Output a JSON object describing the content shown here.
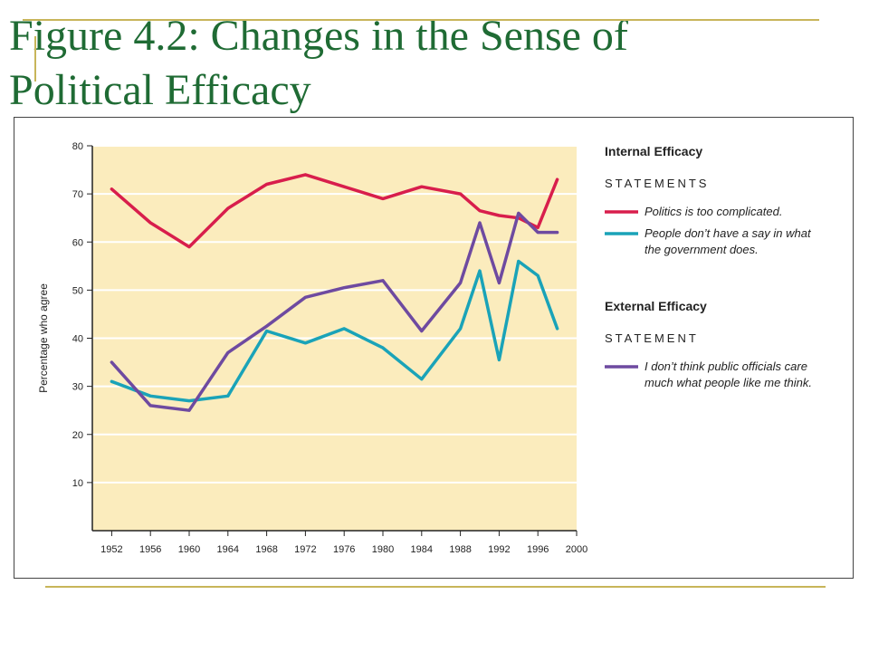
{
  "slide": {
    "title_line1": "Figure 4.2: Changes in the Sense of",
    "title_line2": "Political Efficacy"
  },
  "chart_data": {
    "type": "line",
    "ylabel": "Percentage who agree",
    "xlabel": "",
    "ylim": [
      0,
      80
    ],
    "xlim": [
      1950,
      2000
    ],
    "yticks": [
      10,
      20,
      30,
      40,
      50,
      60,
      70,
      80
    ],
    "xticks": [
      1952,
      1956,
      1960,
      1964,
      1968,
      1972,
      1976,
      1980,
      1984,
      1988,
      1992,
      1996,
      2000
    ],
    "grid": "horizontal",
    "plot_background": "#fbecbd",
    "legend": {
      "placement": "right",
      "groups": [
        {
          "heading": "Internal Efficacy",
          "subheading": "STATEMENTS",
          "entries": [
            {
              "series_index": 0,
              "lines": [
                "Politics is too complicated."
              ]
            },
            {
              "series_index": 1,
              "lines": [
                "People don’t have a say in what",
                "the government does."
              ]
            }
          ]
        },
        {
          "heading": "External Efficacy",
          "subheading": "STATEMENT",
          "entries": [
            {
              "series_index": 2,
              "lines": [
                "I don’t think public officials care",
                "much what people like me think."
              ]
            }
          ]
        }
      ]
    },
    "series": [
      {
        "name": "Politics is too complicated.",
        "color": "#d81e4c",
        "points": [
          [
            1952,
            71
          ],
          [
            1956,
            64
          ],
          [
            1960,
            59
          ],
          [
            1964,
            67
          ],
          [
            1968,
            72
          ],
          [
            1972,
            74
          ],
          [
            1976,
            71.5
          ],
          [
            1980,
            69
          ],
          [
            1984,
            71.5
          ],
          [
            1988,
            70
          ],
          [
            1990,
            66.5
          ],
          [
            1992,
            65.5
          ],
          [
            1994,
            65
          ],
          [
            1996,
            63
          ],
          [
            1998,
            73
          ]
        ]
      },
      {
        "name": "People don’t have a say in what the government does.",
        "color": "#1aa3b8",
        "points": [
          [
            1952,
            31
          ],
          [
            1956,
            28
          ],
          [
            1960,
            27
          ],
          [
            1964,
            28
          ],
          [
            1968,
            41.5
          ],
          [
            1972,
            39
          ],
          [
            1976,
            42
          ],
          [
            1980,
            38
          ],
          [
            1984,
            31.5
          ],
          [
            1988,
            42
          ],
          [
            1990,
            54
          ],
          [
            1992,
            35.5
          ],
          [
            1994,
            56
          ],
          [
            1996,
            53
          ],
          [
            1998,
            42
          ]
        ]
      },
      {
        "name": "I don’t think public officials care much what people like me think.",
        "color": "#6e4aa0",
        "points": [
          [
            1952,
            35
          ],
          [
            1956,
            26
          ],
          [
            1960,
            25
          ],
          [
            1964,
            37
          ],
          [
            1968,
            42.5
          ],
          [
            1972,
            48.5
          ],
          [
            1976,
            50.5
          ],
          [
            1980,
            52
          ],
          [
            1984,
            41.5
          ],
          [
            1988,
            51.5
          ],
          [
            1990,
            64
          ],
          [
            1992,
            51.5
          ],
          [
            1994,
            66
          ],
          [
            1996,
            62
          ],
          [
            1998,
            62
          ]
        ]
      }
    ]
  }
}
